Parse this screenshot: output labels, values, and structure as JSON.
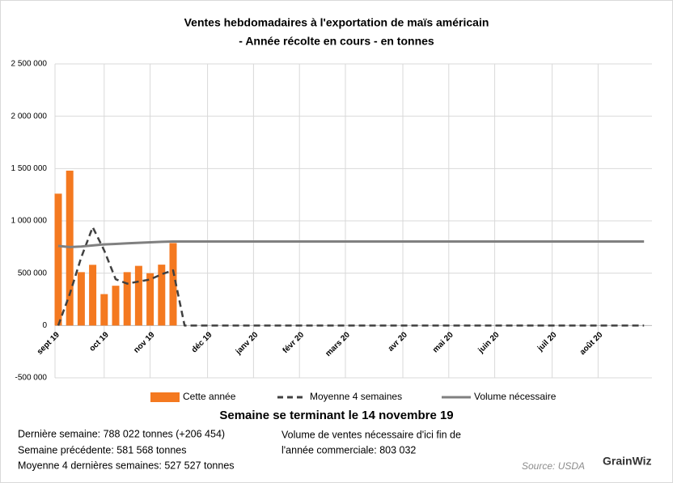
{
  "chart_data": {
    "type": "bar_line",
    "title": "Ventes hebdomadaires à l'exportation de maïs américain",
    "subtitle": "- Année récolte en cours - en tonnes",
    "caption": "Semaine se terminant le 14 novembre 19",
    "categories": [
      "sept 19",
      null,
      null,
      null,
      "oct 19",
      null,
      null,
      null,
      "nov 19",
      null,
      null,
      null,
      null,
      "déc 19",
      null,
      null,
      null,
      "janv 20",
      null,
      null,
      null,
      "févr 20",
      null,
      null,
      null,
      "mars 20",
      null,
      null,
      null,
      null,
      "avr 20",
      null,
      null,
      null,
      "mai 20",
      null,
      null,
      null,
      "juin 20",
      null,
      null,
      null,
      null,
      "juil 20",
      null,
      null,
      null,
      "août 20",
      null,
      null,
      null,
      null
    ],
    "series": [
      {
        "name": "Cette année",
        "type": "bar",
        "color": "#f47920",
        "values": [
          1260000,
          1480000,
          510000,
          580000,
          300000,
          380000,
          510000,
          570000,
          500000,
          581568,
          788022,
          null,
          null,
          null,
          null,
          null,
          null,
          null,
          null,
          null,
          null,
          null,
          null,
          null,
          null,
          null,
          null,
          null,
          null,
          null,
          null,
          null,
          null,
          null,
          null,
          null,
          null,
          null,
          null,
          null,
          null,
          null,
          null,
          null,
          null,
          null,
          null,
          null,
          null,
          null,
          null,
          null
        ]
      },
      {
        "name": "Moyenne 4 semaines",
        "type": "line",
        "dashed": true,
        "color": "#404040",
        "values": [
          0,
          300000,
          650000,
          940000,
          717500,
          442500,
          400000,
          420000,
          440000,
          490000,
          527527,
          0,
          0,
          0,
          0,
          0,
          0,
          0,
          0,
          0,
          0,
          0,
          0,
          0,
          0,
          0,
          0,
          0,
          0,
          0,
          0,
          0,
          0,
          0,
          0,
          0,
          0,
          0,
          0,
          0,
          0,
          0,
          0,
          0,
          0,
          0,
          0,
          0,
          0,
          0,
          0,
          0
        ]
      },
      {
        "name": "Volume nécessaire",
        "type": "line",
        "dashed": false,
        "color": "#808080",
        "values": [
          760000,
          750000,
          755000,
          765000,
          775000,
          780000,
          785000,
          790000,
          795000,
          800000,
          803032,
          803032,
          803032,
          803032,
          803032,
          803032,
          803032,
          803032,
          803032,
          803032,
          803032,
          803032,
          803032,
          803032,
          803032,
          803032,
          803032,
          803032,
          803032,
          803032,
          803032,
          803032,
          803032,
          803032,
          803032,
          803032,
          803032,
          803032,
          803032,
          803032,
          803032,
          803032,
          803032,
          803032,
          803032,
          803032,
          803032,
          803032,
          803032,
          803032,
          803032,
          803032
        ]
      }
    ],
    "ylim": [
      -500000,
      2500000
    ],
    "yticks": [
      {
        "value": -500000,
        "label": "-500 000"
      },
      0,
      {
        "value": 500000,
        "label": "500 000"
      },
      {
        "value": 1000000,
        "label": "1 000 000"
      },
      {
        "value": 1500000,
        "label": "1 500 000"
      },
      {
        "value": 2000000,
        "label": "2 000 000"
      },
      {
        "value": 2500000,
        "label": "2 500 000"
      }
    ],
    "grid": true,
    "legend": "bottom",
    "notes_left": [
      "Dernière semaine: 788 022 tonnes (+206 454)",
      "Semaine précédente: 581 568 tonnes",
      "Moyenne 4 dernières semaines: 527 527 tonnes"
    ],
    "notes_right": [
      "Volume de ventes nécessaire d'ici fin de",
      "l'année commerciale: 803 032"
    ],
    "source": "Source: USDA",
    "logo": "GrainWiz"
  }
}
